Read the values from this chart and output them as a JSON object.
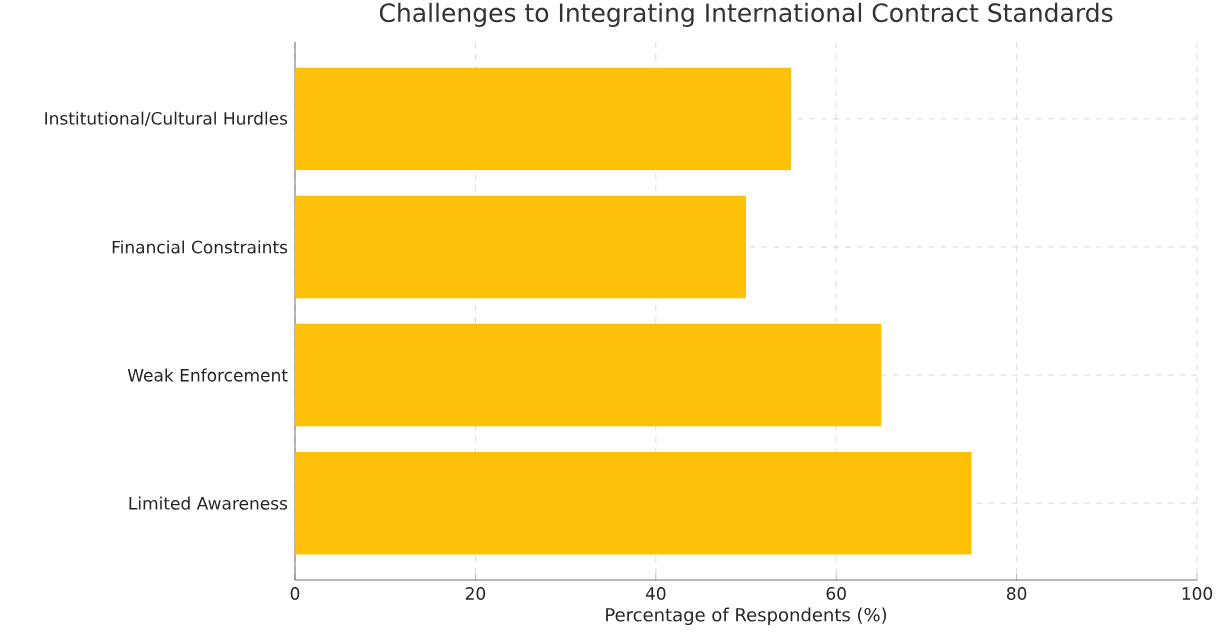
{
  "chart_data": {
    "type": "bar",
    "orientation": "horizontal",
    "title": "Challenges to Integrating International Contract Standards",
    "xlabel": "Percentage of Respondents (%)",
    "categories": [
      "Institutional/Cultural Hurdles",
      "Financial Constraints",
      "Weak Enforcement",
      "Limited Awareness"
    ],
    "values": [
      55,
      50,
      65,
      75
    ],
    "color": "#ffc107",
    "xlim": [
      0,
      100
    ],
    "xticks": [
      0,
      20,
      40,
      60,
      80,
      100
    ],
    "grid": true
  }
}
